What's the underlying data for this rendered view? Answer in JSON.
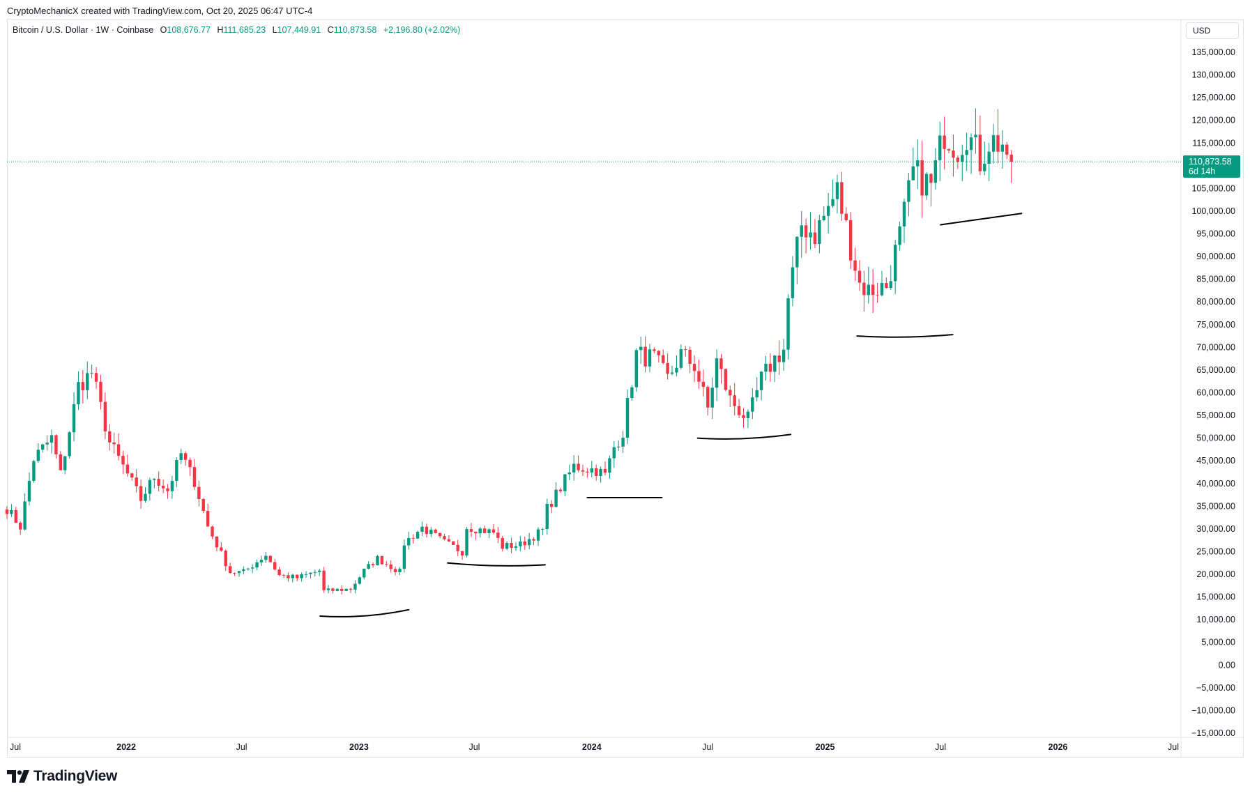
{
  "header": {
    "credit": "CryptoMechanicX created with TradingView.com, Oct 20, 2025 06:47 UTC-4"
  },
  "legend": {
    "symbol": "Bitcoin / U.S. Dollar · 1W · Coinbase",
    "open_label": "O",
    "open": "108,676.77",
    "high_label": "H",
    "high": "111,685.23",
    "low_label": "L",
    "low": "107,449.91",
    "close_label": "C",
    "close": "110,873.58",
    "change": "+2,196.80 (+2.02%)"
  },
  "currency_button": "USD",
  "price_tag": {
    "price": "110,873.58",
    "countdown": "6d 14h"
  },
  "brand": {
    "name": "TradingView",
    "logo_icon": "tradingview-logo-icon"
  },
  "colors": {
    "up": "#089981",
    "down": "#F23645",
    "price_line": "#089981",
    "grid": "#e0e3eb"
  },
  "chart_data": {
    "type": "candlestick",
    "interval": "1W",
    "current_price": 110873.58,
    "y_axis": {
      "range": [
        -15000,
        135000
      ],
      "ticks": [
        135000,
        130000,
        125000,
        120000,
        115000,
        110000,
        105000,
        100000,
        95000,
        90000,
        85000,
        80000,
        75000,
        70000,
        65000,
        60000,
        55000,
        50000,
        45000,
        40000,
        35000,
        30000,
        25000,
        20000,
        15000,
        10000,
        5000,
        0,
        -5000,
        -10000,
        -15000
      ],
      "tick_labels": [
        "135,000.00",
        "130,000.00",
        "125,000.00",
        "120,000.00",
        "115,000.00",
        "",
        "105,000.00",
        "100,000.00",
        "95,000.00",
        "90,000.00",
        "85,000.00",
        "80,000.00",
        "75,000.00",
        "70,000.00",
        "65,000.00",
        "60,000.00",
        "55,000.00",
        "50,000.00",
        "45,000.00",
        "40,000.00",
        "35,000.00",
        "30,000.00",
        "25,000.00",
        "20,000.00",
        "15,000.00",
        "10,000.00",
        "5,000.00",
        "0.00",
        "−5,000.00",
        "−10,000.00",
        "−15,000.00"
      ]
    },
    "x_axis": {
      "range": [
        "2021-06-28",
        "2026-07-13"
      ],
      "ticks": [
        {
          "date": "2021-07-01",
          "label": "Jul",
          "bold": false
        },
        {
          "date": "2022-01-01",
          "label": "2022",
          "bold": true
        },
        {
          "date": "2022-07-01",
          "label": "Jul",
          "bold": false
        },
        {
          "date": "2023-01-01",
          "label": "2023",
          "bold": true
        },
        {
          "date": "2023-07-01",
          "label": "Jul",
          "bold": false
        },
        {
          "date": "2024-01-01",
          "label": "2024",
          "bold": true
        },
        {
          "date": "2024-07-01",
          "label": "Jul",
          "bold": false
        },
        {
          "date": "2025-01-01",
          "label": "2025",
          "bold": true
        },
        {
          "date": "2025-07-01",
          "label": "Jul",
          "bold": false
        },
        {
          "date": "2026-01-01",
          "label": "2026",
          "bold": true
        },
        {
          "date": "2026-07-01",
          "label": "Jul",
          "bold": false
        }
      ]
    },
    "anchors": [
      [
        "2021-06-28",
        34500
      ],
      [
        "2021-07-19",
        30500
      ],
      [
        "2021-08-09",
        45500
      ],
      [
        "2021-09-06",
        50000
      ],
      [
        "2021-09-20",
        42000
      ],
      [
        "2021-10-18",
        61500
      ],
      [
        "2021-11-08",
        64500
      ],
      [
        "2021-12-06",
        49000
      ],
      [
        "2022-01-03",
        42000
      ],
      [
        "2022-01-24",
        36500
      ],
      [
        "2022-02-14",
        41500
      ],
      [
        "2022-03-07",
        38500
      ],
      [
        "2022-03-28",
        46500
      ],
      [
        "2022-04-18",
        40500
      ],
      [
        "2022-05-09",
        30500
      ],
      [
        "2022-06-13",
        20500
      ],
      [
        "2022-07-04",
        20500
      ],
      [
        "2022-08-08",
        24300
      ],
      [
        "2022-08-29",
        19800
      ],
      [
        "2022-09-26",
        19200
      ],
      [
        "2022-10-31",
        20800
      ],
      [
        "2022-11-07",
        16300
      ],
      [
        "2022-12-19",
        16800
      ],
      [
        "2023-01-09",
        20800
      ],
      [
        "2023-01-30",
        23500
      ],
      [
        "2023-03-06",
        20500
      ],
      [
        "2023-03-13",
        26900
      ],
      [
        "2023-04-10",
        30300
      ],
      [
        "2023-05-15",
        27000
      ],
      [
        "2023-06-12",
        25000
      ],
      [
        "2023-06-19",
        30500
      ],
      [
        "2023-07-31",
        29200
      ],
      [
        "2023-08-14",
        26100
      ],
      [
        "2023-09-11",
        26500
      ],
      [
        "2023-10-16",
        29700
      ],
      [
        "2023-10-23",
        34500
      ],
      [
        "2023-12-04",
        43800
      ],
      [
        "2024-01-08",
        43000
      ],
      [
        "2024-01-22",
        41800
      ],
      [
        "2024-02-05",
        48000
      ],
      [
        "2024-02-19",
        51500
      ],
      [
        "2024-03-11",
        68500
      ],
      [
        "2024-04-08",
        67500
      ],
      [
        "2024-04-29",
        63000
      ],
      [
        "2024-05-20",
        68500
      ],
      [
        "2024-06-10",
        66000
      ],
      [
        "2024-07-01",
        56500
      ],
      [
        "2024-07-15",
        67000
      ],
      [
        "2024-08-05",
        58500
      ],
      [
        "2024-09-02",
        54000
      ],
      [
        "2024-09-23",
        63000
      ],
      [
        "2024-10-14",
        67500
      ],
      [
        "2024-10-28",
        69500
      ],
      [
        "2024-11-04",
        80500
      ],
      [
        "2024-11-25",
        97000
      ],
      [
        "2024-12-16",
        95000
      ],
      [
        "2025-01-20",
        104500
      ],
      [
        "2025-02-24",
        84000
      ],
      [
        "2025-03-10",
        82500
      ],
      [
        "2025-04-07",
        83500
      ],
      [
        "2025-04-28",
        94500
      ],
      [
        "2025-05-19",
        108500
      ],
      [
        "2025-06-16",
        105500
      ],
      [
        "2025-07-07",
        117500
      ],
      [
        "2025-07-28",
        114000
      ],
      [
        "2025-08-11",
        117500
      ],
      [
        "2025-09-01",
        111200
      ],
      [
        "2025-09-15",
        115500
      ],
      [
        "2025-10-06",
        115000
      ],
      [
        "2025-10-13",
        108700
      ],
      [
        "2025-10-20",
        110873.58
      ]
    ],
    "annotations": [
      {
        "type": "support-curve",
        "from": [
          "2022-11-01",
          10800
        ],
        "to": [
          "2023-03-20",
          12200
        ]
      },
      {
        "type": "support-curve",
        "from": [
          "2023-05-20",
          22500
        ],
        "to": [
          "2023-10-20",
          22100
        ]
      },
      {
        "type": "support-line",
        "from": [
          "2023-12-25",
          36900
        ],
        "to": [
          "2024-04-20",
          36900
        ]
      },
      {
        "type": "support-curve",
        "from": [
          "2024-06-15",
          50000
        ],
        "to": [
          "2024-11-08",
          50800
        ]
      },
      {
        "type": "support-curve",
        "from": [
          "2025-02-20",
          72500
        ],
        "to": [
          "2025-07-20",
          72800
        ]
      },
      {
        "type": "support-line",
        "from": [
          "2025-07-01",
          97000
        ],
        "to": [
          "2025-11-05",
          99500
        ]
      }
    ]
  }
}
